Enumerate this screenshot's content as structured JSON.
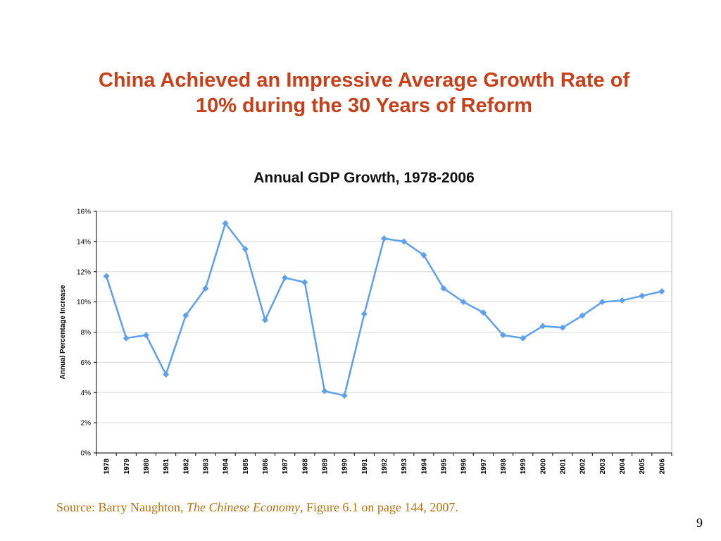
{
  "slide": {
    "title_line1": "China Achieved an Impressive Average Growth Rate of",
    "title_line2": "10% during the 30 Years of Reform",
    "page_number": "9"
  },
  "source": {
    "prefix": "Source: Barry Naughton, ",
    "book": "The Chinese Economy",
    "suffix": ", Figure 6.1 on page 144, 2007."
  },
  "colors": {
    "title": "#c8401a",
    "series": "#5ea0ec",
    "source": "#b8720a"
  },
  "chart_data": {
    "type": "line",
    "title": "Annual GDP Growth, 1978-2006",
    "xlabel": "",
    "ylabel": "Annual Percentage Increase",
    "ylim": [
      0,
      16
    ],
    "yticks": [
      0,
      2,
      4,
      6,
      8,
      10,
      12,
      14,
      16
    ],
    "ytick_labels": [
      "0%",
      "2%",
      "4%",
      "6%",
      "8%",
      "10%",
      "12%",
      "14%",
      "16%"
    ],
    "grid": true,
    "legend": "none",
    "marker": "diamond",
    "categories": [
      "1978",
      "1979",
      "1980",
      "1981",
      "1982",
      "1983",
      "1984",
      "1985",
      "1986",
      "1987",
      "1988",
      "1989",
      "1990",
      "1991",
      "1992",
      "1993",
      "1994",
      "1995",
      "1996",
      "1997",
      "1998",
      "1999",
      "2000",
      "2001",
      "2002",
      "2003",
      "2004",
      "2005",
      "2006"
    ],
    "series": [
      {
        "values": [
          11.7,
          7.6,
          7.8,
          5.2,
          9.1,
          10.9,
          15.2,
          13.5,
          8.8,
          11.6,
          11.3,
          4.1,
          3.8,
          9.2,
          14.2,
          14.0,
          13.1,
          10.9,
          10.0,
          9.3,
          7.8,
          7.6,
          8.4,
          8.3,
          9.1,
          10.0,
          10.1,
          10.4,
          10.7
        ]
      }
    ]
  }
}
